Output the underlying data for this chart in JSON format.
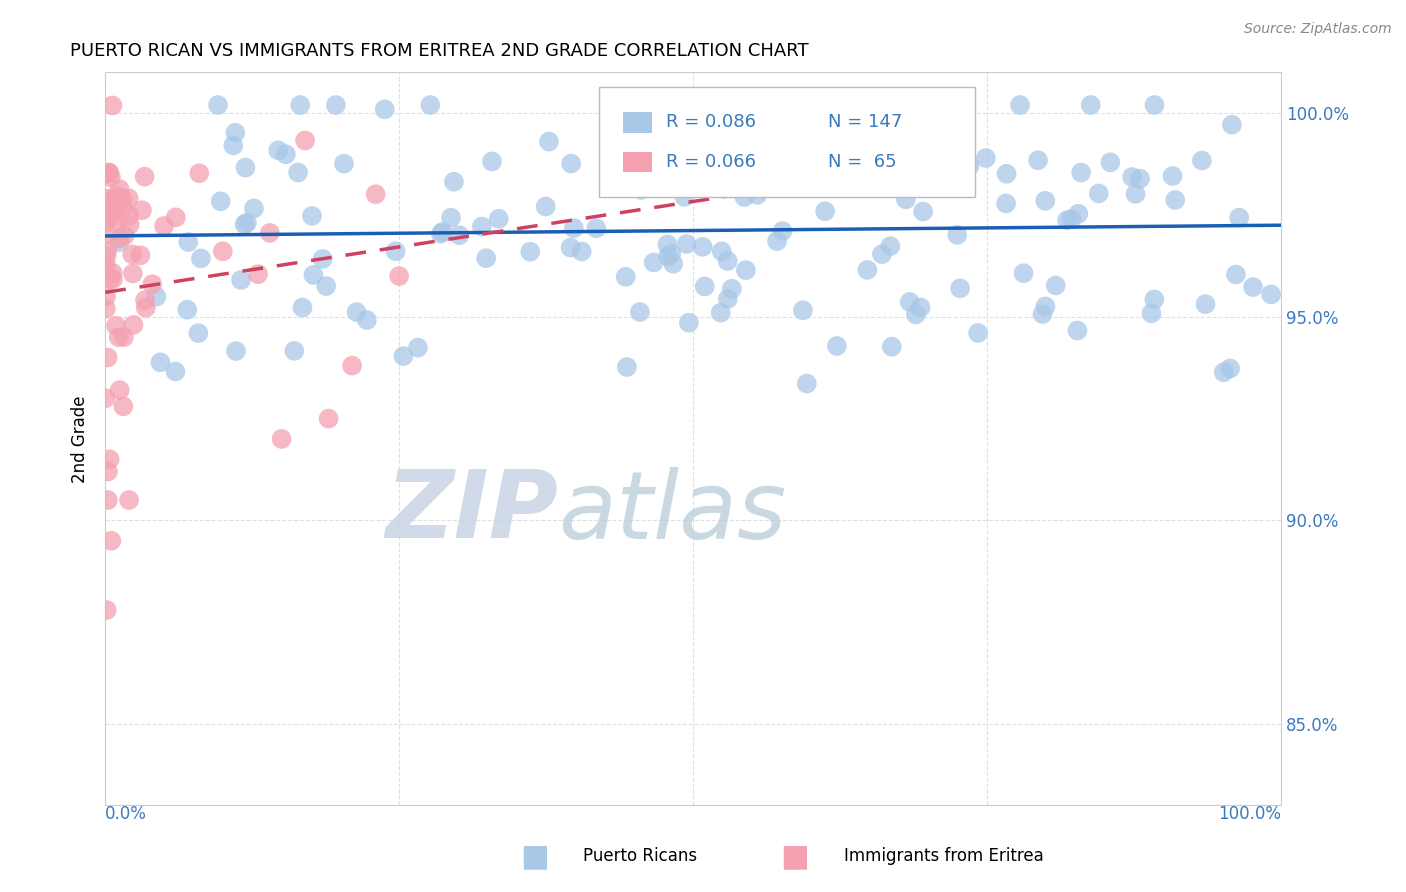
{
  "title": "PUERTO RICAN VS IMMIGRANTS FROM ERITREA 2ND GRADE CORRELATION CHART",
  "source_text": "Source: ZipAtlas.com",
  "ylabel": "2nd Grade",
  "legend_r_blue": "R = 0.086",
  "legend_n_blue": "N = 147",
  "legend_r_pink": "R = 0.066",
  "legend_n_pink": "N =  65",
  "blue_color": "#a8c8e8",
  "pink_color": "#f4a0b0",
  "trend_blue_color": "#1a5fb4",
  "trend_pink_color": "#d04060",
  "watermark_zip_color": "#c0cce0",
  "watermark_atlas_color": "#b8ccd8",
  "background_color": "#ffffff",
  "grid_color": "#e0e0e0",
  "axis_label_color": "#3a7abf",
  "title_color": "#000000",
  "ylabel_color": "#000000"
}
